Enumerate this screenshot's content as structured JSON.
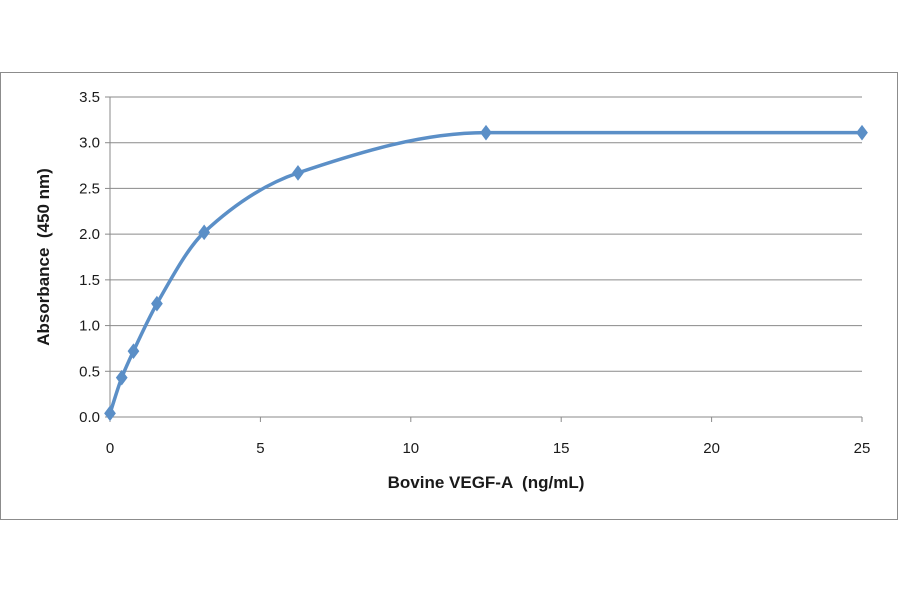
{
  "chart_data": {
    "type": "line",
    "title": "",
    "xlabel": "Bovine VEGF-A  (ng/mL)",
    "ylabel": "Absorbance  (450 nm)",
    "xlim": [
      0,
      25
    ],
    "ylim": [
      0,
      3.5
    ],
    "xticks": [
      0,
      5,
      10,
      15,
      20,
      25
    ],
    "yticks": [
      0.0,
      0.5,
      1.0,
      1.5,
      2.0,
      2.5,
      3.0,
      3.5
    ],
    "xtick_labels": [
      "0",
      "5",
      "10",
      "15",
      "20",
      "25"
    ],
    "ytick_labels": [
      "0.0",
      "0.5",
      "1.0",
      "1.5",
      "2.0",
      "2.5",
      "3.0",
      "3.5"
    ],
    "grid": "horizontal",
    "smooth": true,
    "marker": "diamond",
    "series": [
      {
        "color": "#5b8fc7",
        "x": [
          0,
          0.39,
          0.78,
          1.56,
          3.13,
          6.25,
          12.5,
          25
        ],
        "y": [
          0.04,
          0.43,
          0.72,
          1.24,
          2.02,
          2.67,
          3.11,
          3.11
        ]
      }
    ]
  }
}
